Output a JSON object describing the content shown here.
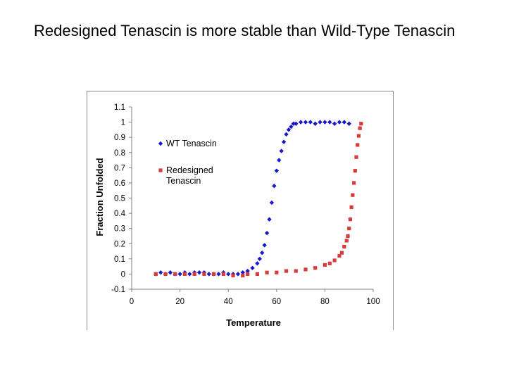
{
  "slide": {
    "title": "Redesigned Tenascin is more stable than Wild-Type Tenascin"
  },
  "chart_data": {
    "type": "scatter",
    "xlabel": "Temperature",
    "ylabel": "Fraction Unfolded",
    "xlim": [
      0,
      100
    ],
    "ylim": [
      -0.1,
      1.1
    ],
    "x_ticks": [
      "0",
      "20",
      "40",
      "60",
      "80",
      "100"
    ],
    "y_ticks": [
      "-0.1",
      "0",
      "0.1",
      "0.2",
      "0.3",
      "0.4",
      "0.5",
      "0.6",
      "0.7",
      "0.8",
      "0.9",
      "1",
      "1.1"
    ],
    "grid": false,
    "legend_position": "left-inside",
    "series": [
      {
        "name": "WT Tenascin",
        "color": "#1a1acc",
        "marker": "diamond",
        "points": [
          [
            10,
            0.0
          ],
          [
            12,
            0.01
          ],
          [
            14,
            0.0
          ],
          [
            16,
            0.01
          ],
          [
            18,
            0.0
          ],
          [
            20,
            0.0
          ],
          [
            22,
            0.01
          ],
          [
            24,
            0.0
          ],
          [
            26,
            0.01
          ],
          [
            28,
            0.01
          ],
          [
            30,
            0.01
          ],
          [
            32,
            0.0
          ],
          [
            34,
            0.0
          ],
          [
            36,
            0.0
          ],
          [
            38,
            0.01
          ],
          [
            40,
            0.0
          ],
          [
            42,
            0.0
          ],
          [
            44,
            0.0
          ],
          [
            46,
            0.01
          ],
          [
            48,
            0.02
          ],
          [
            50,
            0.04
          ],
          [
            52,
            0.07
          ],
          [
            53,
            0.1
          ],
          [
            54,
            0.14
          ],
          [
            55,
            0.19
          ],
          [
            56,
            0.27
          ],
          [
            57,
            0.36
          ],
          [
            58,
            0.47
          ],
          [
            59,
            0.58
          ],
          [
            60,
            0.68
          ],
          [
            61,
            0.75
          ],
          [
            62,
            0.81
          ],
          [
            63,
            0.87
          ],
          [
            64,
            0.92
          ],
          [
            65,
            0.95
          ],
          [
            66,
            0.97
          ],
          [
            67,
            0.99
          ],
          [
            68,
            0.99
          ],
          [
            70,
            1.0
          ],
          [
            72,
            1.0
          ],
          [
            74,
            1.0
          ],
          [
            76,
            0.99
          ],
          [
            78,
            1.0
          ],
          [
            80,
            1.0
          ],
          [
            82,
            1.0
          ],
          [
            84,
            0.99
          ],
          [
            86,
            1.0
          ],
          [
            88,
            1.0
          ],
          [
            90,
            0.99
          ]
        ]
      },
      {
        "name": "Redesigned Tenascin",
        "color": "#d93b3b",
        "marker": "square",
        "points": [
          [
            10,
            0.0
          ],
          [
            14,
            0.0
          ],
          [
            18,
            0.0
          ],
          [
            22,
            0.0
          ],
          [
            26,
            0.0
          ],
          [
            30,
            0.0
          ],
          [
            34,
            0.0
          ],
          [
            38,
            0.0
          ],
          [
            42,
            -0.01
          ],
          [
            46,
            -0.01
          ],
          [
            48,
            0.0
          ],
          [
            52,
            0.0
          ],
          [
            56,
            0.01
          ],
          [
            60,
            0.01
          ],
          [
            64,
            0.02
          ],
          [
            68,
            0.02
          ],
          [
            72,
            0.03
          ],
          [
            76,
            0.04
          ],
          [
            80,
            0.06
          ],
          [
            82,
            0.07
          ],
          [
            84,
            0.09
          ],
          [
            86,
            0.12
          ],
          [
            87,
            0.14
          ],
          [
            88,
            0.18
          ],
          [
            89,
            0.22
          ],
          [
            89.5,
            0.25
          ],
          [
            90,
            0.3
          ],
          [
            90.5,
            0.36
          ],
          [
            91,
            0.44
          ],
          [
            91.5,
            0.52
          ],
          [
            92,
            0.6
          ],
          [
            92.5,
            0.68
          ],
          [
            93,
            0.77
          ],
          [
            93.5,
            0.85
          ],
          [
            94,
            0.91
          ],
          [
            94.5,
            0.96
          ],
          [
            95,
            0.99
          ]
        ]
      }
    ]
  }
}
